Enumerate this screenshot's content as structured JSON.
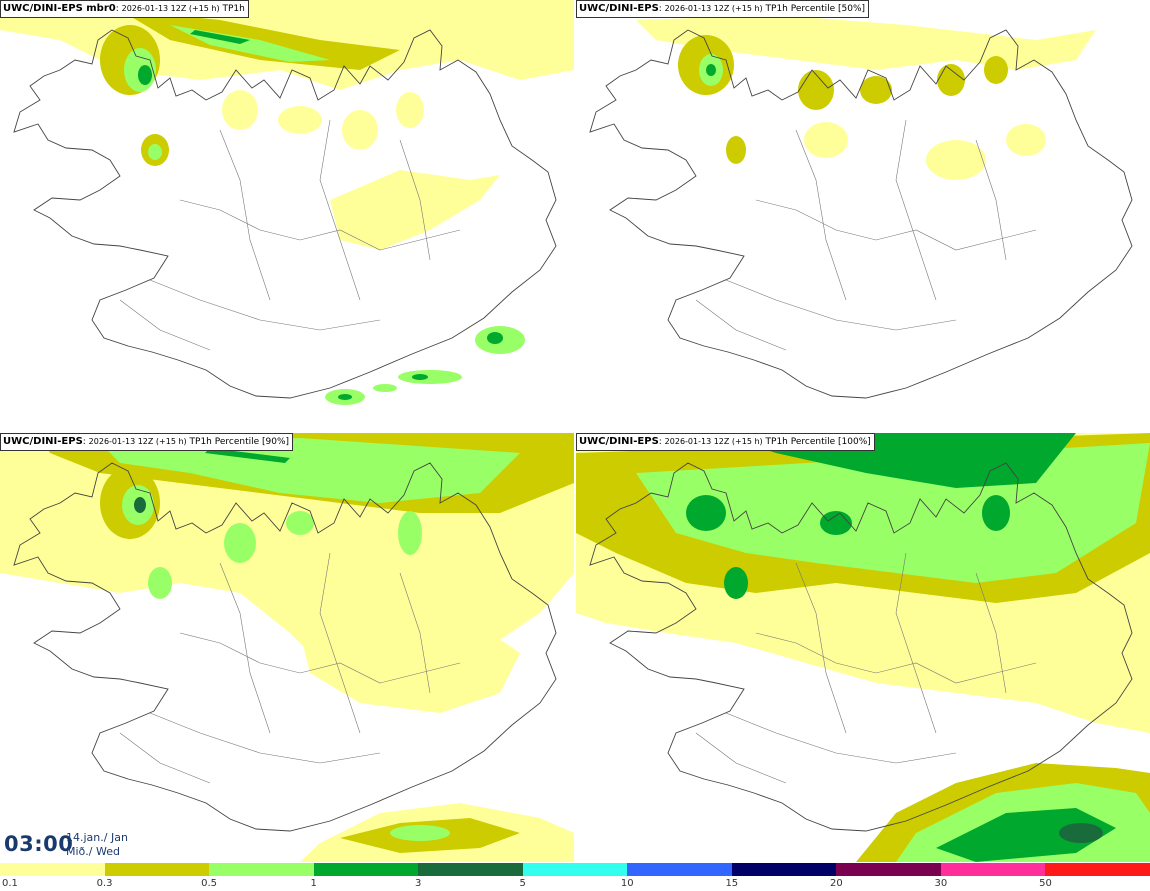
{
  "panels": [
    {
      "model": "UWC/DINI-EPS mbr0",
      "run": "2026-01-13 12Z (+15 h)",
      "field": "TP1h"
    },
    {
      "model": "UWC/DINI-EPS",
      "run": "2026-01-13 12Z (+15 h)",
      "field": "TP1h Percentile [50%]"
    },
    {
      "model": "UWC/DINI-EPS",
      "run": "2026-01-13 12Z (+15 h)",
      "field": "TP1h Percentile [90%]"
    },
    {
      "model": "UWC/DINI-EPS",
      "run": "2026-01-13 12Z (+15 h)",
      "field": "TP1h Percentile [100%]"
    }
  ],
  "valid_time": {
    "time": "03:00",
    "date": "14.jan./ Jan",
    "weekday": "Mið./ Wed"
  },
  "legend": {
    "labels": [
      "0.1",
      "0.3",
      "0.5",
      "1",
      "3",
      "5",
      "10",
      "15",
      "20",
      "30",
      "50"
    ],
    "colors": [
      "#ffff99",
      "#cccc00",
      "#99ff66",
      "#00a82e",
      "#1a6b3c",
      "#33ffee",
      "#3366ff",
      "#000066",
      "#7a0050",
      "#ff2e9a",
      "#ff1a1a"
    ]
  },
  "colors": {
    "light": "#ffff99",
    "olive": "#cccc00",
    "lightgreen": "#99ff66",
    "green": "#00a82e",
    "darkgreen": "#1a6b3c",
    "coast": "#444444"
  }
}
